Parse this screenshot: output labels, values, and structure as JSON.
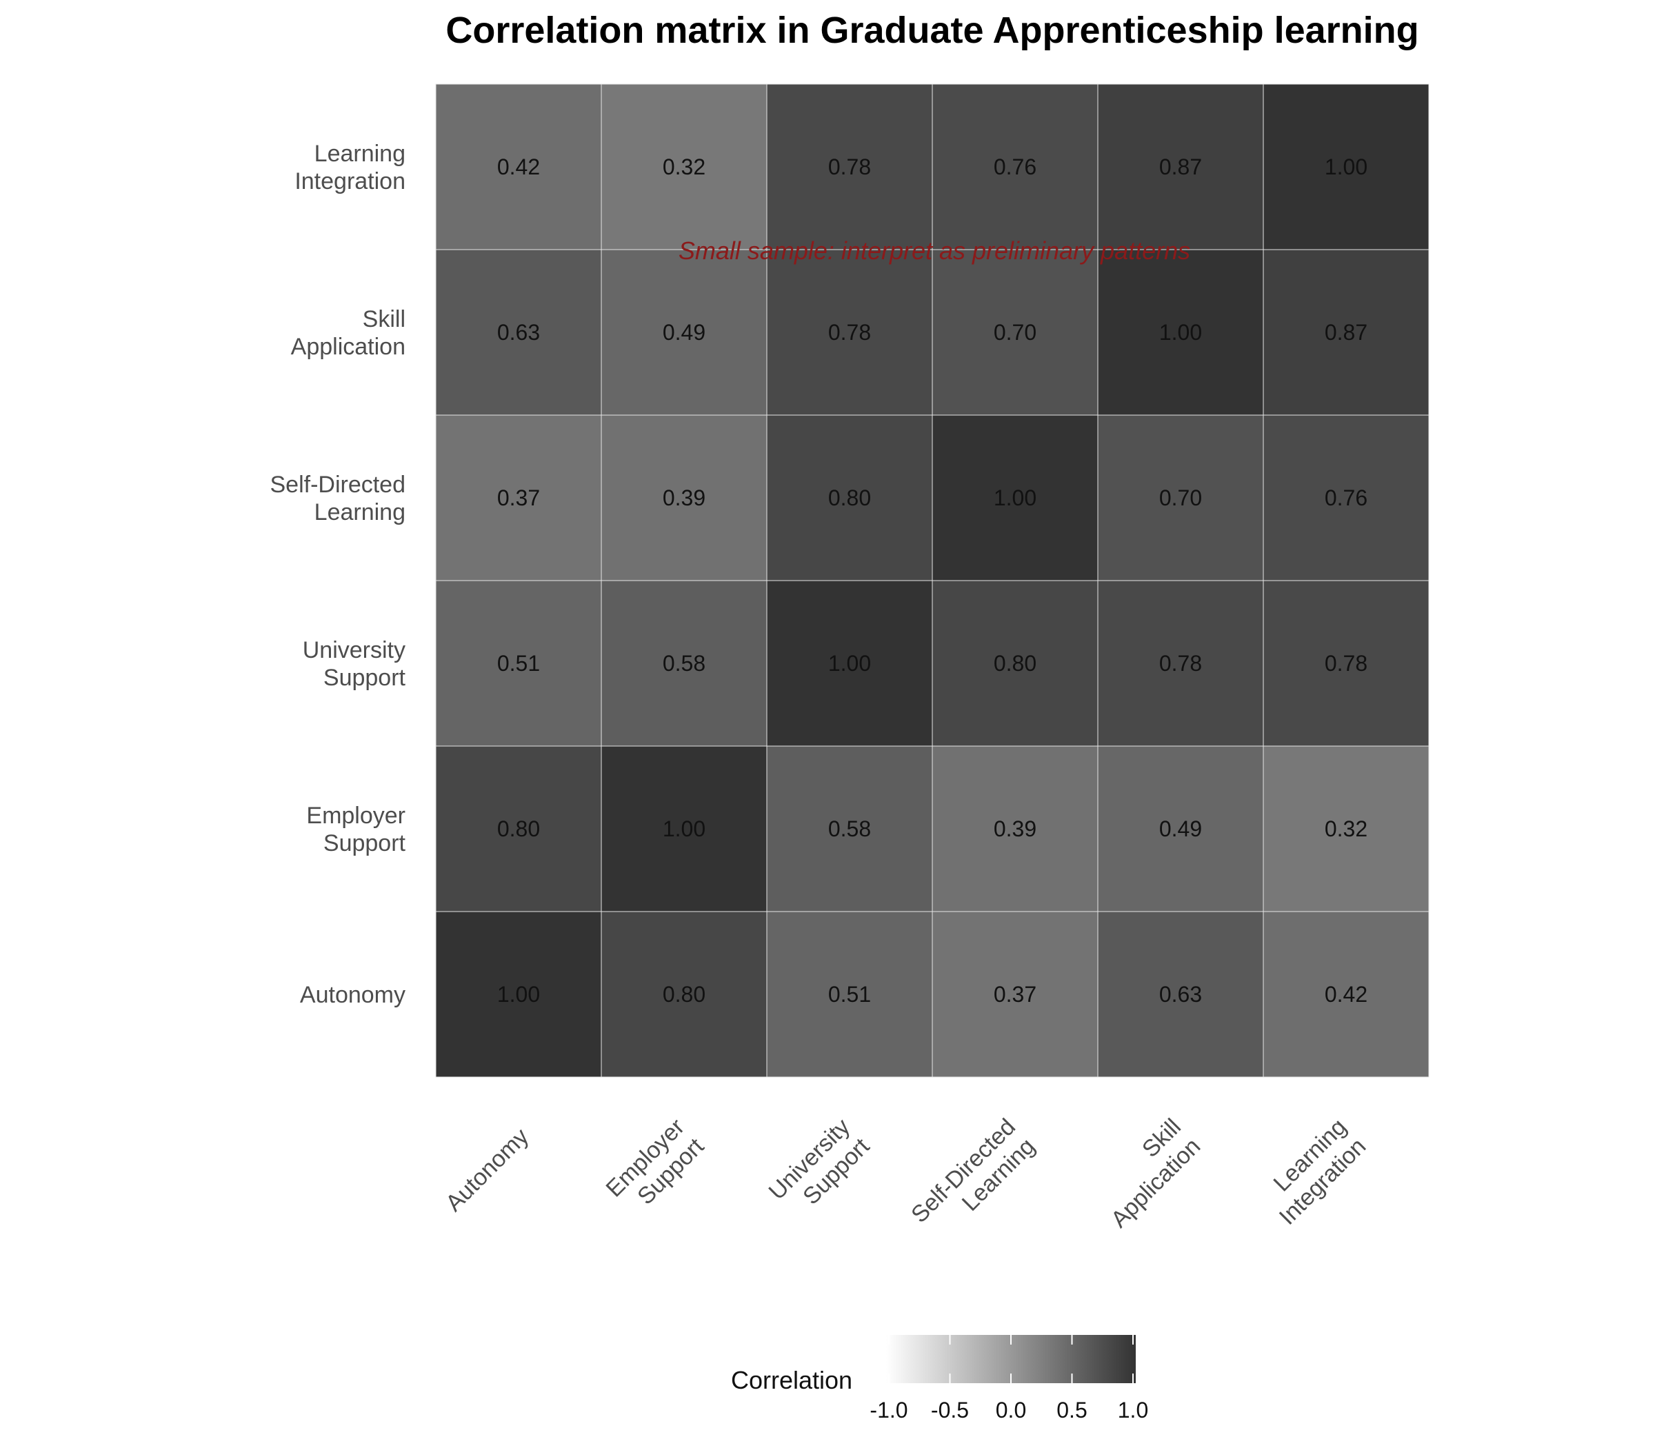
{
  "chart_data": {
    "type": "heatmap",
    "title": "Correlation matrix in Graduate Apprenticeship learning",
    "variables": [
      [
        "Autonomy"
      ],
      [
        "Employer",
        "Support"
      ],
      [
        "University",
        "Support"
      ],
      [
        "Self-Directed",
        "Learning"
      ],
      [
        "Skill",
        "Application"
      ],
      [
        "Learning",
        "Integration"
      ]
    ],
    "matrix": [
      [
        1.0,
        0.8,
        0.51,
        0.37,
        0.63,
        0.42
      ],
      [
        0.8,
        1.0,
        0.58,
        0.39,
        0.49,
        0.32
      ],
      [
        0.51,
        0.58,
        1.0,
        0.8,
        0.78,
        0.78
      ],
      [
        0.37,
        0.39,
        0.8,
        1.0,
        0.7,
        0.76
      ],
      [
        0.63,
        0.49,
        0.78,
        0.7,
        1.0,
        0.87
      ],
      [
        0.42,
        0.32,
        0.78,
        0.76,
        0.87,
        1.0
      ]
    ],
    "value_range": [
      -1,
      1
    ],
    "annotation": "Small sample: interpret as preliminary patterns",
    "legend": {
      "title": "Correlation",
      "ticks": [
        "-1.0",
        "-0.5",
        "0.0",
        "0.5",
        "1.0"
      ],
      "position": "bottom"
    },
    "colors": {
      "low": "#ffffff",
      "high": "#333333",
      "annotation": "#8b1a1a",
      "grid": "#e6e6e6"
    }
  }
}
